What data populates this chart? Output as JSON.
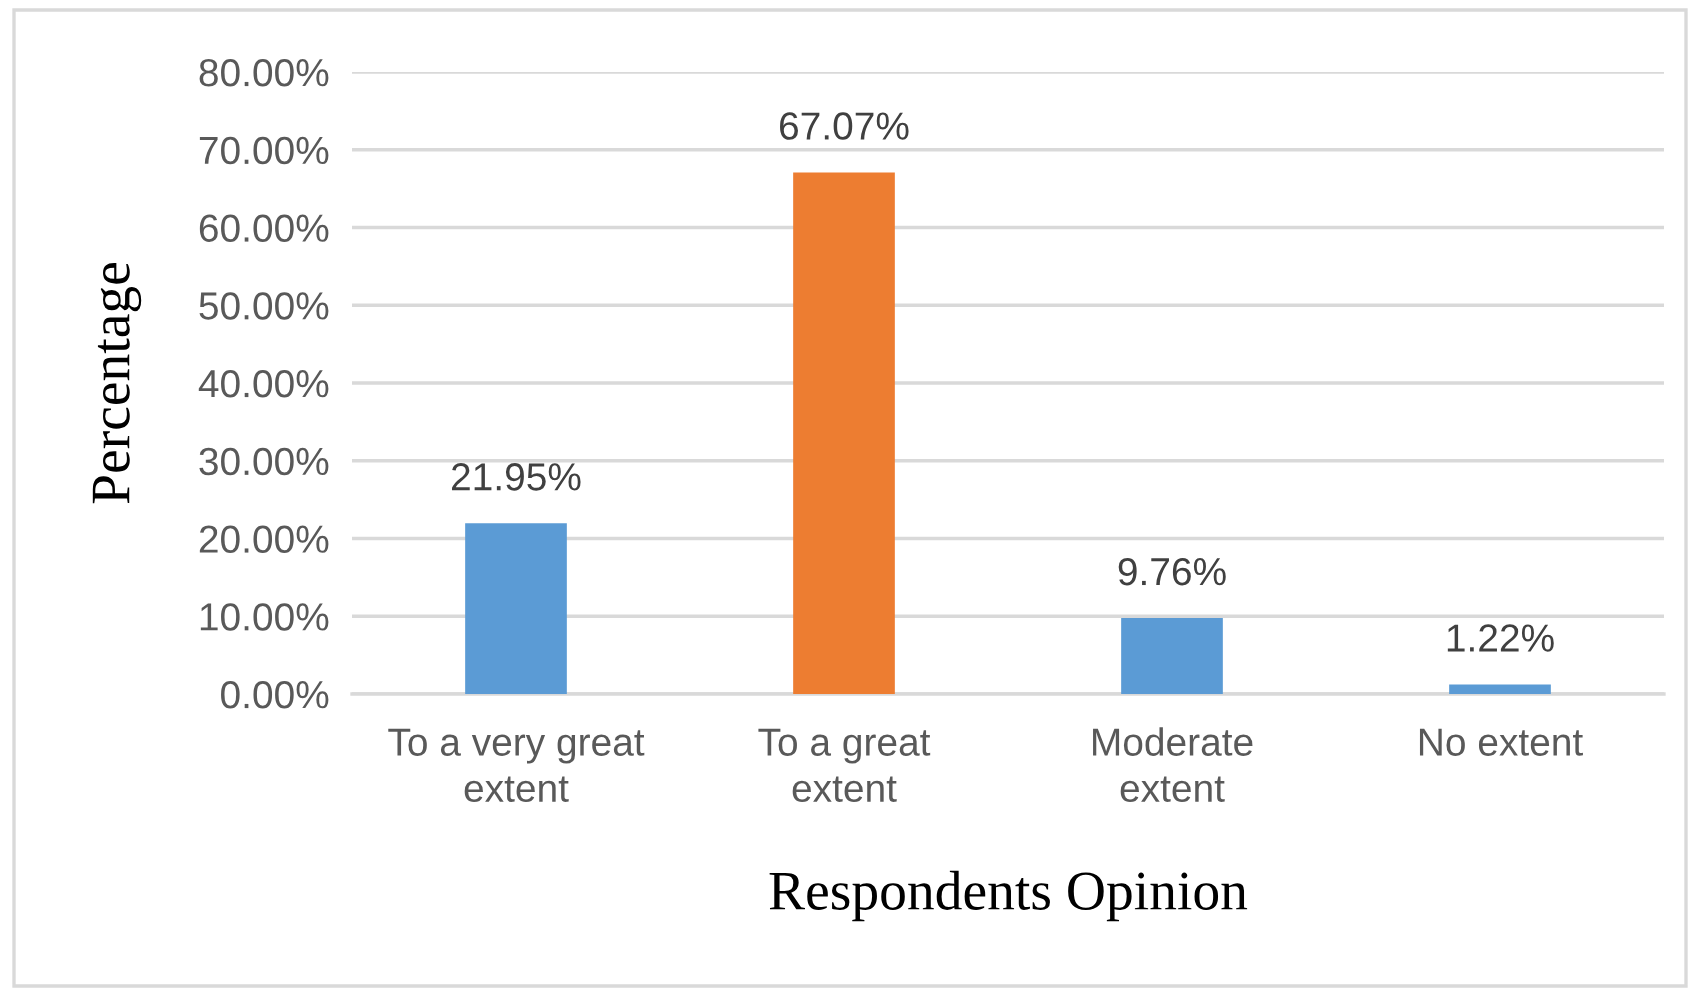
{
  "chart_data": {
    "type": "bar",
    "xlabel": "Respondents Opinion",
    "ylabel": "Percentage",
    "categories": [
      "To a very great\nextent",
      "To a great\nextent",
      "Moderate\nextent",
      "No extent"
    ],
    "values": [
      21.95,
      67.07,
      9.76,
      1.22
    ],
    "colors": [
      "#5b9bd5",
      "#ed7d31",
      "#5b9bd5",
      "#5b9bd5"
    ],
    "value_labels": [
      "21.95%",
      "67.07%",
      "9.76%",
      "1.22%"
    ],
    "ylim": [
      0,
      80
    ],
    "yticks": [
      {
        "value": 0,
        "label": "0.00%"
      },
      {
        "value": 10,
        "label": "10.00%"
      },
      {
        "value": 20,
        "label": "20.00%"
      },
      {
        "value": 30,
        "label": "30.00%"
      },
      {
        "value": 40,
        "label": "40.00%"
      },
      {
        "value": 50,
        "label": "50.00%"
      },
      {
        "value": 60,
        "label": "60.00%"
      },
      {
        "value": 70,
        "label": "70.00%"
      },
      {
        "value": 80,
        "label": "80.00%"
      }
    ],
    "grid": "y"
  }
}
